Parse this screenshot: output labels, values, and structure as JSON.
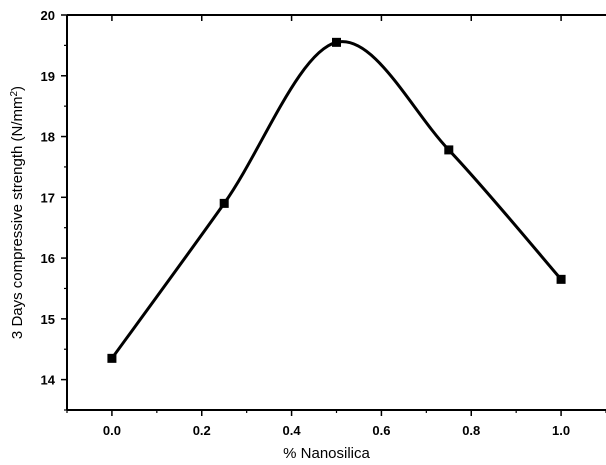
{
  "chart_data": {
    "type": "line",
    "xlabel": "% Nanosilica",
    "ylabel": {
      "text": "3 Days compressive strength (N/mm",
      "sup": "2",
      "suffix": ")"
    },
    "xlim": [
      -0.1,
      1.1
    ],
    "ylim": [
      13.5,
      20
    ],
    "x_ticks": [
      "0.0",
      "0.2",
      "0.4",
      "0.6",
      "0.8",
      "1.0"
    ],
    "y_ticks": [
      "14",
      "15",
      "16",
      "17",
      "18",
      "19",
      "20"
    ],
    "series": [
      {
        "x": [
          0.0,
          0.25,
          0.5,
          0.75,
          1.0
        ],
        "y": [
          14.35,
          16.9,
          19.55,
          17.78,
          15.65
        ],
        "marker": "square",
        "smooth": true,
        "color": "#000000"
      }
    ],
    "grid": false,
    "legend": "none"
  }
}
